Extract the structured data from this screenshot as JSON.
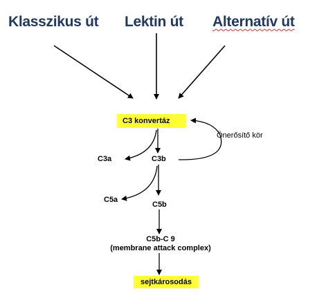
{
  "pathways": {
    "classic": "Klasszikus út",
    "lectin": "Lektin út",
    "alternative": "Alternatív út"
  },
  "nodes": {
    "c3_convertase": "C3 konvertáz",
    "amplification_loop": "Önerősítő kör",
    "c3a": "C3a",
    "c3b": "C3b",
    "c5a": "C5a",
    "c5b": "C5b",
    "mac_line1": "C5b-C 9",
    "mac_line2": "(membrane attack complex)",
    "cell_damage": "sejtkárosodás"
  },
  "colors": {
    "title": "#1f3864",
    "highlight": "#ffff33",
    "arrow": "#000000",
    "spellcheck_underline": "#e03030"
  }
}
